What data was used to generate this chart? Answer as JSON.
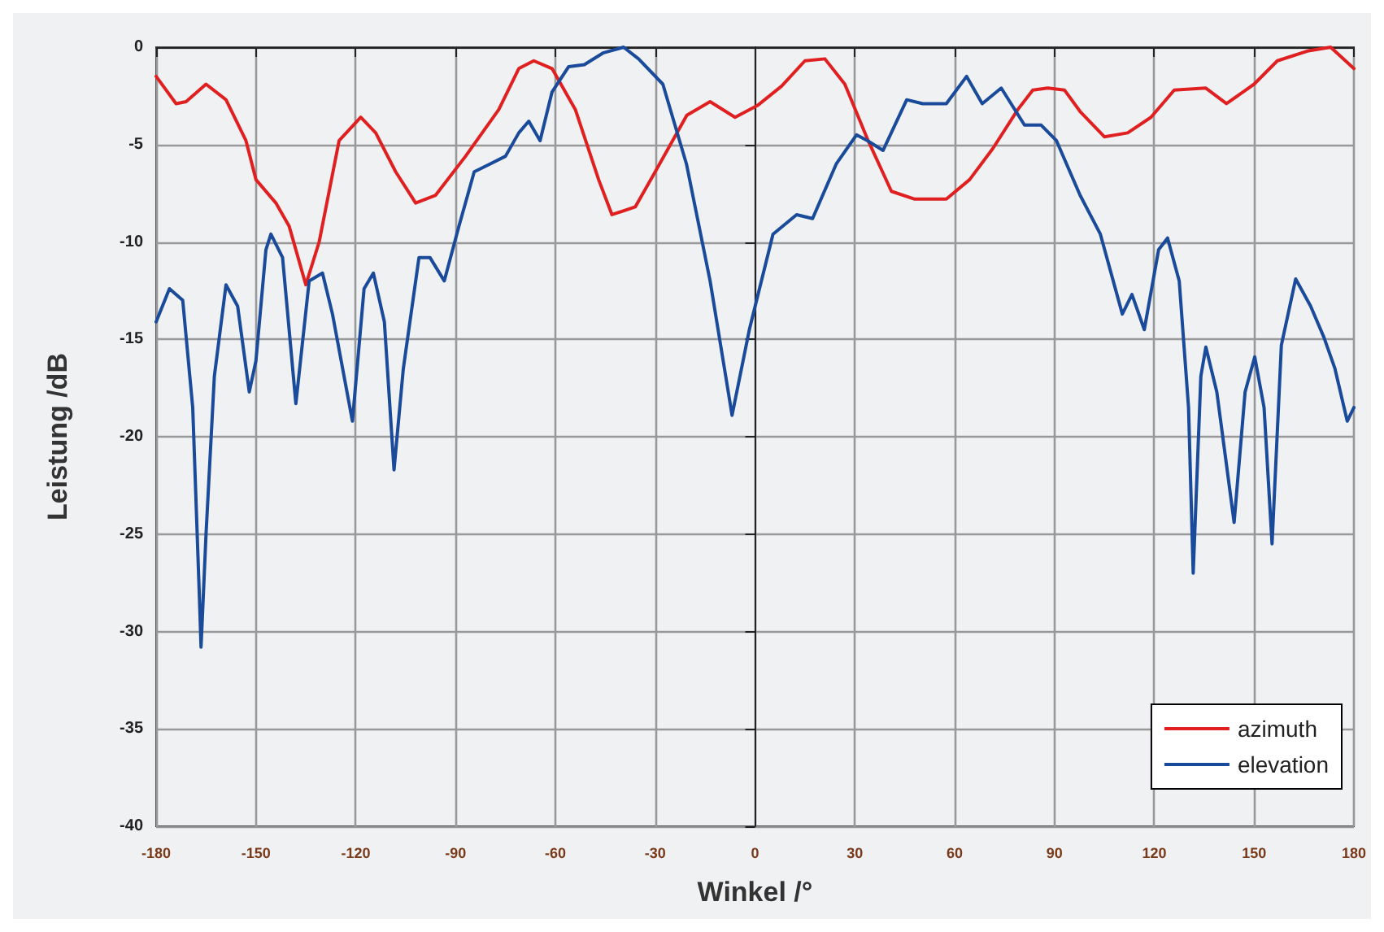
{
  "chart_data": {
    "type": "line",
    "xlabel": "Winkel /°",
    "ylabel": "Leistung /dB",
    "xlim": [
      -180,
      180
    ],
    "xticks": [
      -180,
      -150,
      -120,
      -90,
      -60,
      -30,
      0,
      30,
      60,
      90,
      120,
      150,
      180
    ],
    "ylim": [
      -40,
      0
    ],
    "yticks": [
      -40,
      -35,
      -30,
      -25,
      -20,
      -15,
      -10,
      -5,
      0
    ],
    "grid": true,
    "legend": "bottom right",
    "marker": "none",
    "line_style": "solid",
    "series": [
      {
        "name": "azimuth",
        "color": "#e02020",
        "x": [
          -180,
          -174,
          -171,
          -165,
          -159,
          -153,
          -150,
          -144,
          -140,
          -135,
          -131,
          -125,
          -118.5,
          -114,
          -108,
          -102,
          -96,
          -87,
          -77,
          -71,
          -66.5,
          -61,
          -54,
          -47,
          -43,
          -36,
          -30,
          -20.5,
          -13.5,
          -6,
          0.7,
          8,
          15,
          21,
          27,
          34,
          41,
          48,
          57.5,
          64.5,
          71.5,
          79,
          83.5,
          88,
          93,
          97.7,
          105,
          112,
          119,
          126,
          135.5,
          141.7,
          150,
          157,
          166,
          173,
          180
        ],
        "values": [
          -1.5,
          -2.9,
          -2.8,
          -1.9,
          -2.7,
          -4.8,
          -6.8,
          -8,
          -9.2,
          -12.2,
          -10,
          -4.8,
          -3.6,
          -4.4,
          -6.4,
          -8,
          -7.6,
          -5.6,
          -3.2,
          -1.1,
          -0.7,
          -1.1,
          -3.2,
          -6.8,
          -8.6,
          -8.2,
          -6.4,
          -3.5,
          -2.8,
          -3.6,
          -3,
          -2,
          -0.7,
          -0.6,
          -1.9,
          -4.8,
          -7.4,
          -7.8,
          -7.8,
          -6.8,
          -5.2,
          -3.2,
          -2.2,
          -2.1,
          -2.2,
          -3.3,
          -4.6,
          -4.4,
          -3.6,
          -2.2,
          -2.1,
          -2.9,
          -1.9,
          -0.7,
          -0.2,
          0,
          -1.1
        ]
      },
      {
        "name": "elevation",
        "color": "#1a4a9a",
        "x": [
          -180,
          -176,
          -172,
          -169,
          -167,
          -166.5,
          -165,
          -162.5,
          -159,
          -155.5,
          -152,
          -150,
          -147,
          -145.5,
          -142,
          -138,
          -134,
          -130,
          -127,
          -121,
          -117.5,
          -114.7,
          -111.4,
          -108.5,
          -105.7,
          -101,
          -97.7,
          -93.4,
          -89,
          -84.4,
          -79.7,
          -75,
          -71,
          -68,
          -64.6,
          -61,
          -56,
          -51.3,
          -45.7,
          -39.5,
          -35,
          -27.7,
          -20.6,
          -13.5,
          -8.8,
          -6.9,
          -1.7,
          5.4,
          12.5,
          17.3,
          24.4,
          30.5,
          33.8,
          38.5,
          45.6,
          50.4,
          57.5,
          63.6,
          68.3,
          74,
          81,
          86,
          90.6,
          97.7,
          103.8,
          110.4,
          113.3,
          117,
          121.3,
          124,
          127.5,
          130.3,
          131.7,
          134,
          135.5,
          138.8,
          144,
          147.3,
          150.2,
          153,
          155.4,
          158.2,
          162.5,
          167,
          171,
          174.3,
          178,
          180
        ],
        "values": [
          -14.1,
          -12.4,
          -13,
          -18.5,
          -28.2,
          -30.8,
          -25,
          -16.9,
          -12.2,
          -13.3,
          -17.7,
          -16.1,
          -10.4,
          -9.6,
          -10.8,
          -18.3,
          -12,
          -11.6,
          -13.7,
          -19.2,
          -12.4,
          -11.6,
          -14.1,
          -21.7,
          -16.5,
          -10.8,
          -10.8,
          -12,
          -9.2,
          -6.4,
          -6,
          -5.6,
          -4.4,
          -3.8,
          -4.8,
          -2.3,
          -1,
          -0.9,
          -0.3,
          0,
          -0.6,
          -1.9,
          -6,
          -12,
          -16.9,
          -18.9,
          -14.5,
          -9.6,
          -8.6,
          -8.8,
          -6,
          -4.5,
          -4.8,
          -5.3,
          -2.7,
          -2.9,
          -2.9,
          -1.5,
          -2.9,
          -2.1,
          -4,
          -4,
          -4.8,
          -7.6,
          -9.6,
          -13.7,
          -12.7,
          -14.5,
          -10.4,
          -9.8,
          -12,
          -18.5,
          -27,
          -16.9,
          -15.4,
          -17.7,
          -24.4,
          -17.7,
          -15.9,
          -18.5,
          -25.5,
          -15.3,
          -11.9,
          -13.3,
          -14.9,
          -16.5,
          -19.2,
          -18.5
        ]
      }
    ]
  }
}
